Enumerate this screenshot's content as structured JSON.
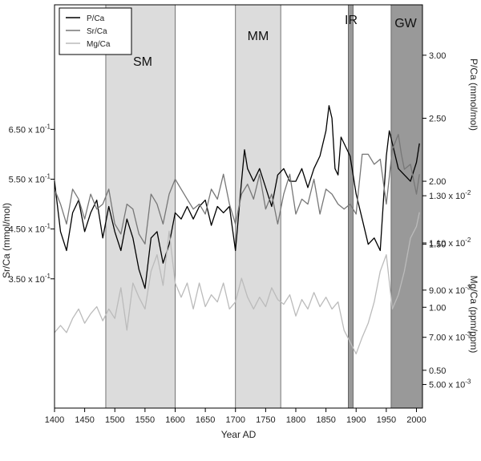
{
  "chart_data": {
    "type": "line",
    "xlabel": "Year AD",
    "xlim": [
      1400,
      2010
    ],
    "xticks": [
      1400,
      1450,
      1500,
      1550,
      1600,
      1650,
      1700,
      1750,
      1800,
      1850,
      1900,
      1950,
      2000
    ],
    "axes": {
      "pca": {
        "label": "P/Ca (mmol/mol)",
        "side": "right",
        "ylim": [
          0.2,
          3.4
        ],
        "ticks": [
          "3.00",
          "2.50",
          "2.00",
          "1.50",
          "1.00",
          "0.50"
        ]
      },
      "srca": {
        "label": "Sr/Ca (mmol/mol)",
        "side": "left",
        "ylim": [
          0.2,
          0.9
        ],
        "ticks": [
          "6.50 x 10^-1",
          "5.50 x 10^-1",
          "4.50 x 10^-1",
          "3.50 x 10^-1"
        ]
      },
      "mgca": {
        "label": "Mg/Ca (ppm/ppm)",
        "side": "right",
        "ylim": [
          0.004,
          0.0145
        ],
        "ticks": [
          "1.30 x 10^-2",
          "1.10 x 10^-2",
          "9.00 x 10^-3",
          "7.00 x 10^-3",
          "5.00 x 10^-3"
        ]
      }
    },
    "periods": [
      {
        "label": "SM",
        "start": 1485,
        "end": 1600,
        "shade": "#dcdcdc"
      },
      {
        "label": "MM",
        "start": 1700,
        "end": 1775,
        "shade": "#dcdcdc"
      },
      {
        "label": "IR",
        "start": 1887,
        "end": 1895,
        "shade": "#999999"
      },
      {
        "label": "GW",
        "start": 1958,
        "end": 2010,
        "shade": "#999999"
      }
    ],
    "legend": {
      "position": "top-left"
    },
    "series": [
      {
        "name": "P/Ca",
        "axis": "pca",
        "color": "#000000",
        "x": [
          1400,
          1410,
          1420,
          1430,
          1440,
          1450,
          1460,
          1470,
          1480,
          1490,
          1500,
          1510,
          1520,
          1530,
          1540,
          1550,
          1560,
          1570,
          1580,
          1590,
          1600,
          1610,
          1620,
          1630,
          1640,
          1650,
          1660,
          1670,
          1680,
          1690,
          1700,
          1710,
          1715,
          1720,
          1730,
          1740,
          1750,
          1760,
          1770,
          1780,
          1790,
          1800,
          1810,
          1820,
          1830,
          1840,
          1850,
          1855,
          1860,
          1865,
          1870,
          1875,
          1880,
          1890,
          1900,
          1910,
          1920,
          1930,
          1940,
          1950,
          1955,
          1960,
          1970,
          1980,
          1990,
          2000,
          2005
        ],
        "values": [
          2.0,
          1.6,
          1.45,
          1.75,
          1.85,
          1.6,
          1.75,
          1.85,
          1.55,
          1.8,
          1.6,
          1.45,
          1.7,
          1.55,
          1.3,
          1.15,
          1.55,
          1.6,
          1.35,
          1.5,
          1.75,
          1.7,
          1.8,
          1.7,
          1.8,
          1.85,
          1.65,
          1.8,
          1.75,
          1.8,
          1.45,
          2.0,
          2.25,
          2.1,
          2.0,
          2.1,
          1.95,
          1.8,
          2.05,
          2.1,
          2.0,
          2.0,
          2.1,
          1.95,
          2.1,
          2.2,
          2.4,
          2.6,
          2.5,
          2.1,
          2.05,
          2.35,
          2.3,
          2.2,
          1.9,
          1.7,
          1.5,
          1.55,
          1.45,
          2.2,
          2.4,
          2.3,
          2.1,
          2.05,
          2.0,
          2.15,
          2.3
        ]
      },
      {
        "name": "Sr/Ca",
        "axis": "srca",
        "color": "#777777",
        "x": [
          1400,
          1410,
          1420,
          1430,
          1440,
          1450,
          1460,
          1470,
          1480,
          1490,
          1500,
          1510,
          1520,
          1530,
          1540,
          1550,
          1560,
          1570,
          1580,
          1590,
          1600,
          1610,
          1620,
          1630,
          1640,
          1650,
          1660,
          1670,
          1680,
          1690,
          1700,
          1710,
          1720,
          1730,
          1740,
          1750,
          1760,
          1770,
          1780,
          1790,
          1800,
          1810,
          1820,
          1830,
          1840,
          1850,
          1860,
          1870,
          1880,
          1890,
          1900,
          1910,
          1920,
          1930,
          1940,
          1950,
          1960,
          1970,
          1975,
          1980,
          1990,
          2000,
          2005
        ],
        "values": [
          0.53,
          0.5,
          0.46,
          0.53,
          0.51,
          0.47,
          0.52,
          0.49,
          0.5,
          0.53,
          0.46,
          0.44,
          0.5,
          0.49,
          0.44,
          0.42,
          0.52,
          0.5,
          0.46,
          0.52,
          0.55,
          0.53,
          0.51,
          0.49,
          0.5,
          0.48,
          0.53,
          0.51,
          0.56,
          0.5,
          0.46,
          0.52,
          0.54,
          0.51,
          0.56,
          0.49,
          0.52,
          0.46,
          0.52,
          0.56,
          0.48,
          0.51,
          0.5,
          0.55,
          0.48,
          0.53,
          0.52,
          0.5,
          0.49,
          0.5,
          0.48,
          0.6,
          0.6,
          0.58,
          0.59,
          0.5,
          0.61,
          0.64,
          0.6,
          0.57,
          0.58,
          0.52,
          0.56
        ]
      },
      {
        "name": "Mg/Ca",
        "axis": "mgca",
        "color": "#bbbbbb",
        "x": [
          1400,
          1410,
          1420,
          1430,
          1440,
          1450,
          1460,
          1470,
          1480,
          1490,
          1500,
          1510,
          1520,
          1530,
          1540,
          1550,
          1560,
          1570,
          1580,
          1590,
          1600,
          1610,
          1620,
          1630,
          1640,
          1650,
          1660,
          1670,
          1680,
          1690,
          1700,
          1710,
          1720,
          1730,
          1740,
          1750,
          1760,
          1770,
          1780,
          1790,
          1800,
          1810,
          1820,
          1830,
          1840,
          1850,
          1860,
          1870,
          1880,
          1890,
          1900,
          1910,
          1920,
          1930,
          1940,
          1950,
          1960,
          1970,
          1980,
          1990,
          2000,
          2005
        ],
        "values": [
          0.0072,
          0.0075,
          0.0072,
          0.0078,
          0.0082,
          0.0076,
          0.008,
          0.0083,
          0.0077,
          0.0082,
          0.0078,
          0.0091,
          0.0073,
          0.0093,
          0.0087,
          0.0082,
          0.0098,
          0.0105,
          0.0092,
          0.0115,
          0.0093,
          0.0087,
          0.0093,
          0.0082,
          0.0093,
          0.0083,
          0.0088,
          0.0085,
          0.0093,
          0.0082,
          0.0085,
          0.0095,
          0.0087,
          0.0082,
          0.0087,
          0.0083,
          0.0091,
          0.0086,
          0.0084,
          0.0088,
          0.0079,
          0.0086,
          0.0082,
          0.0089,
          0.0083,
          0.0087,
          0.0082,
          0.0085,
          0.0073,
          0.0068,
          0.0063,
          0.007,
          0.0076,
          0.0085,
          0.0098,
          0.0105,
          0.0082,
          0.0088,
          0.0098,
          0.0112,
          0.0117,
          0.0123
        ]
      }
    ]
  }
}
